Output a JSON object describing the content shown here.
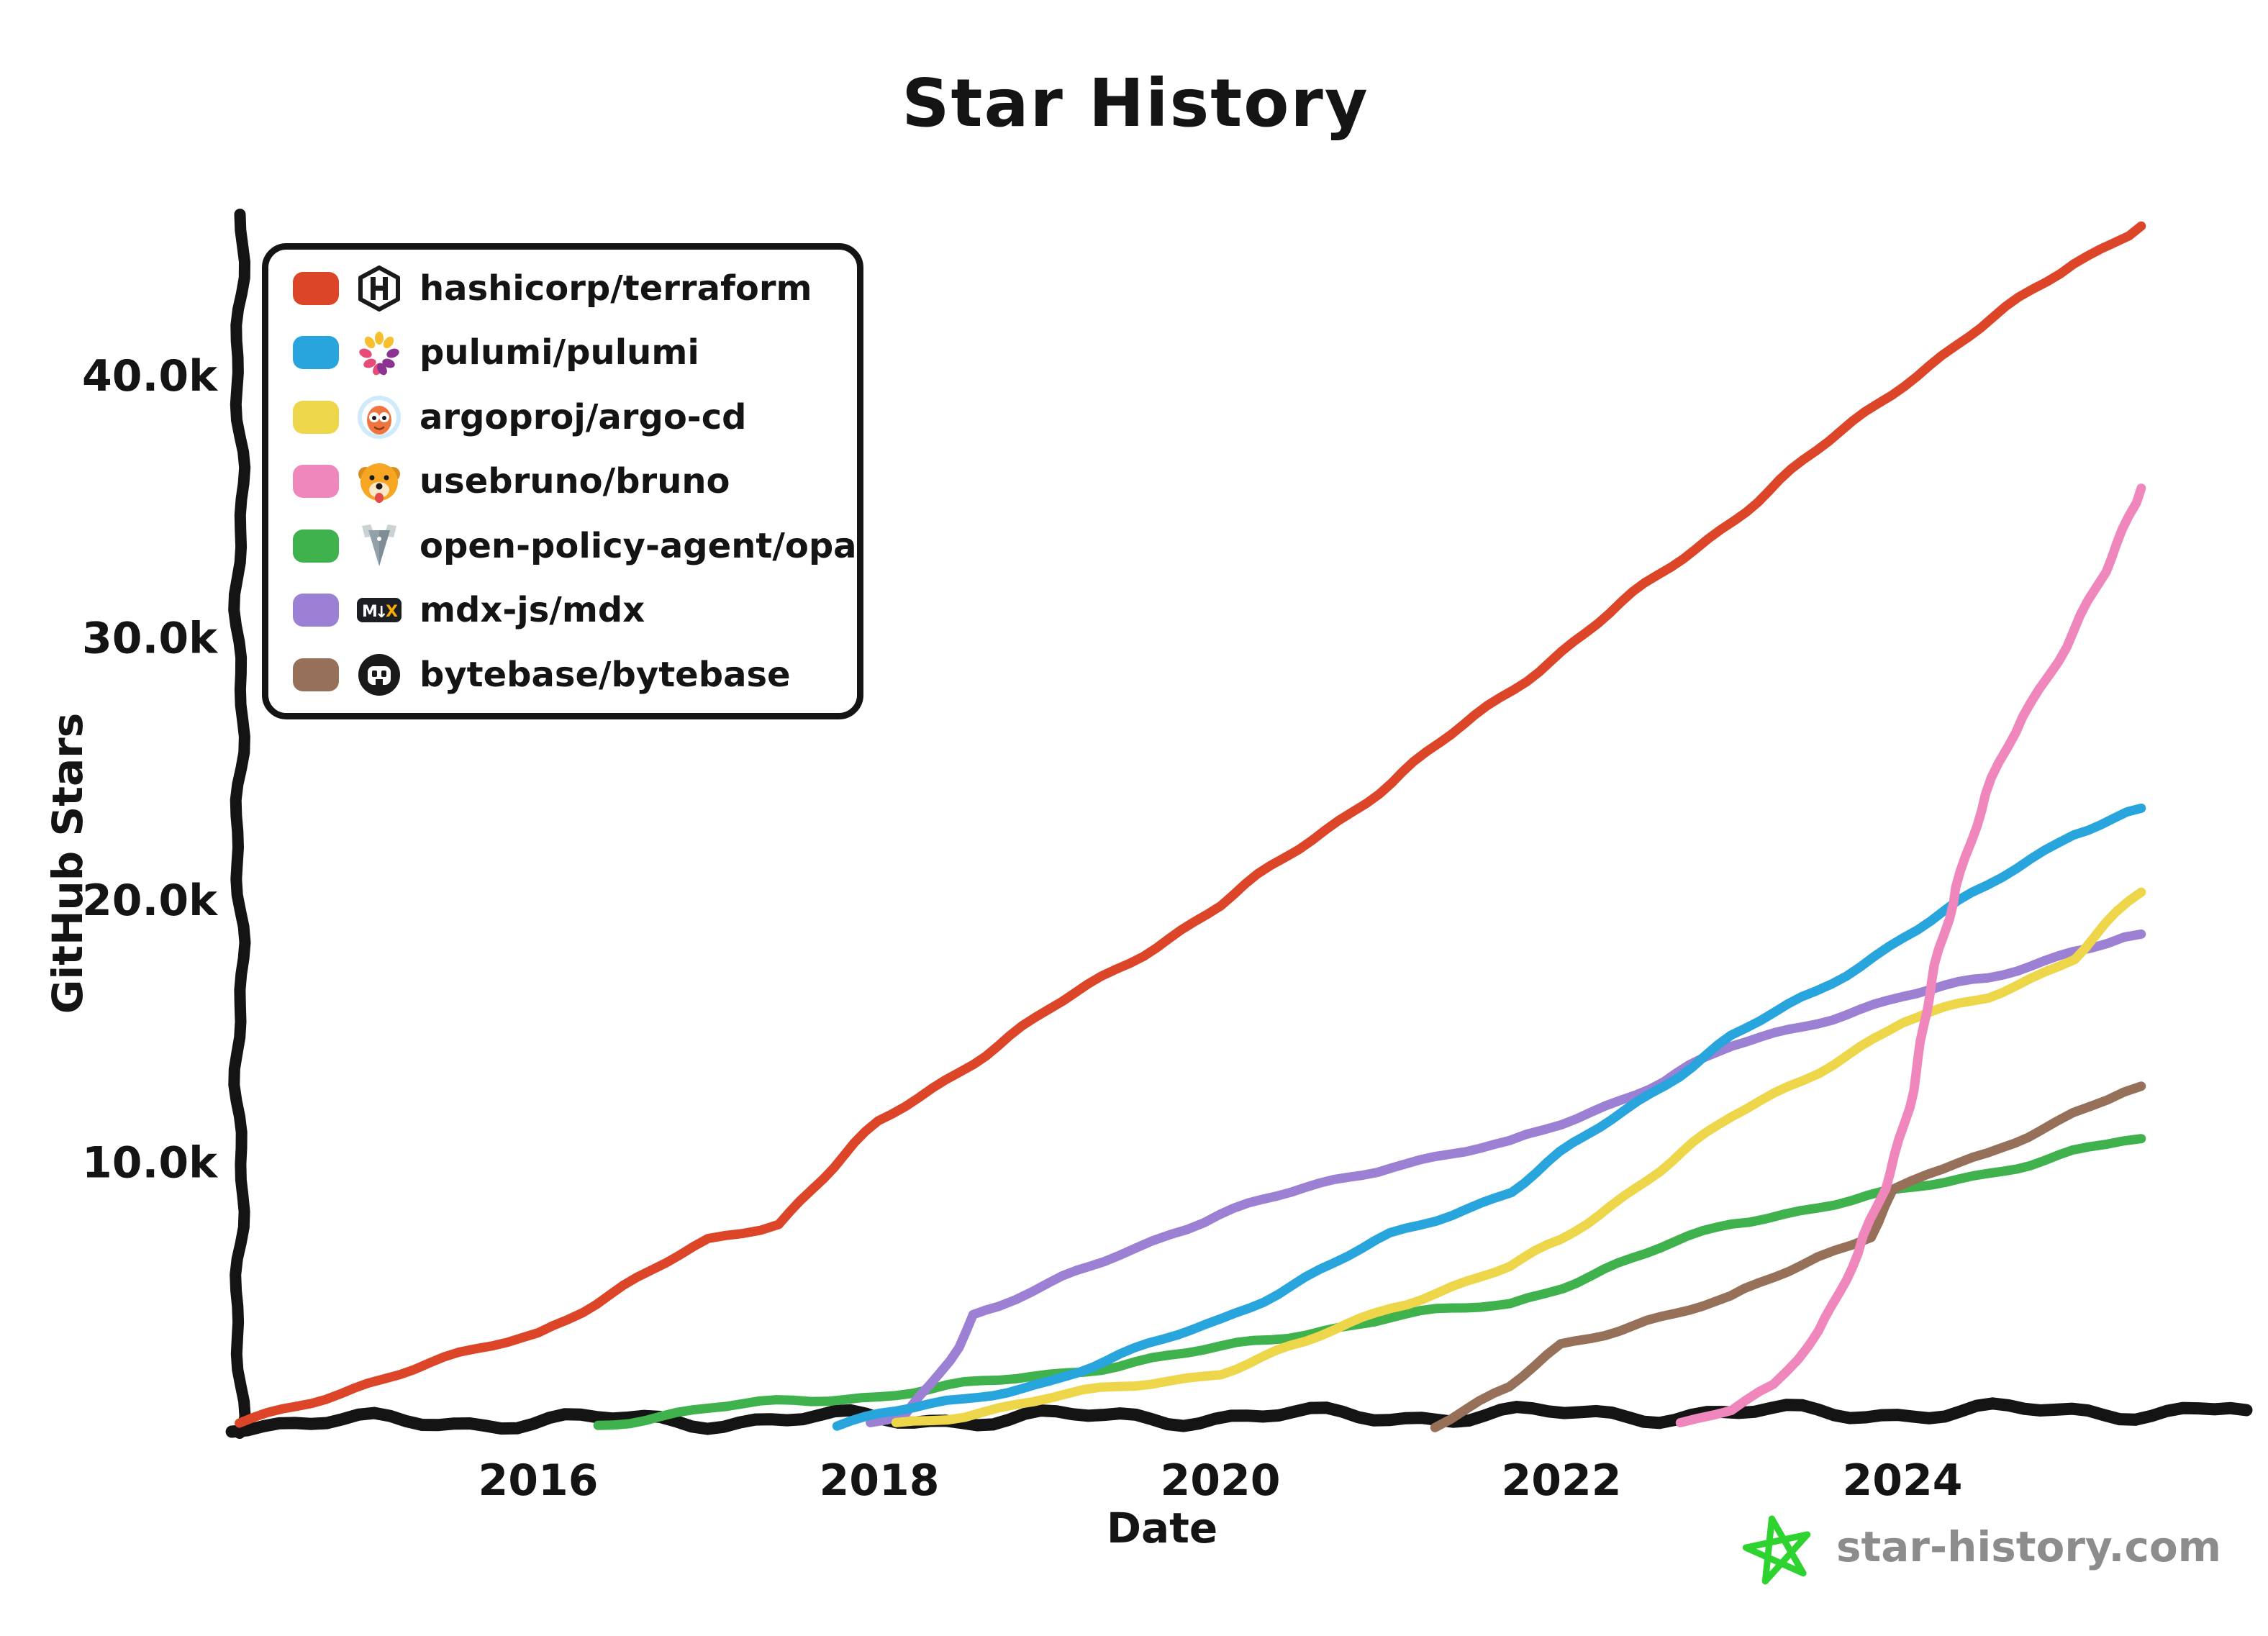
{
  "title": "Star History",
  "watermark": {
    "text": "star-history.com",
    "star_color": "#2fd32f",
    "text_color": "#8c8c8c"
  },
  "colors": {
    "axis": "#141414",
    "background": "#ffffff"
  },
  "chart_data": {
    "type": "line",
    "title": "Star History",
    "xlabel": "Date",
    "ylabel": "GitHub Stars",
    "x_range": [
      2014.25,
      2025.45
    ],
    "y_range": [
      0,
      46500
    ],
    "grid": false,
    "legend_position": "top-left",
    "x_ticks": [
      {
        "label": "2016",
        "value": 2016
      },
      {
        "label": "2018",
        "value": 2018
      },
      {
        "label": "2020",
        "value": 2020
      },
      {
        "label": "2022",
        "value": 2022
      },
      {
        "label": "2024",
        "value": 2024
      }
    ],
    "y_ticks": [
      {
        "label": "10.0k",
        "value": 10000
      },
      {
        "label": "20.0k",
        "value": 20000
      },
      {
        "label": "30.0k",
        "value": 30000
      },
      {
        "label": "40.0k",
        "value": 40000
      }
    ],
    "series": [
      {
        "name": "hashicorp/terraform",
        "color": "#dd4528",
        "icon": "hashicorp-icon",
        "points": [
          [
            2014.25,
            0
          ],
          [
            2015,
            1600
          ],
          [
            2016,
            3500
          ],
          [
            2017,
            7000
          ],
          [
            2017.4,
            7700
          ],
          [
            2018,
            11500
          ],
          [
            2019,
            15800
          ],
          [
            2020,
            19800
          ],
          [
            2021,
            24500
          ],
          [
            2022,
            29500
          ],
          [
            2023,
            34500
          ],
          [
            2024,
            39700
          ],
          [
            2025,
            44300
          ],
          [
            2025.4,
            45700
          ]
        ]
      },
      {
        "name": "pulumi/pulumi",
        "color": "#29a5dd",
        "icon": "pulumi-icon",
        "points": [
          [
            2017.75,
            0
          ],
          [
            2018,
            400
          ],
          [
            2018.5,
            900
          ],
          [
            2019,
            1700
          ],
          [
            2019.5,
            2800
          ],
          [
            2020,
            4000
          ],
          [
            2020.5,
            5600
          ],
          [
            2021,
            7200
          ],
          [
            2021.7,
            8900
          ],
          [
            2022,
            10300
          ],
          [
            2022.6,
            13000
          ],
          [
            2023,
            14800
          ],
          [
            2023.5,
            16500
          ],
          [
            2024,
            18600
          ],
          [
            2024.5,
            20500
          ],
          [
            2025,
            22600
          ],
          [
            2025.4,
            23500
          ]
        ]
      },
      {
        "name": "argoproj/argo-cd",
        "color": "#eed64a",
        "icon": "argo-icon",
        "points": [
          [
            2018.1,
            0
          ],
          [
            2018.5,
            400
          ],
          [
            2019,
            1000
          ],
          [
            2019.5,
            1500
          ],
          [
            2020,
            2000
          ],
          [
            2020.5,
            3100
          ],
          [
            2021,
            4500
          ],
          [
            2021.7,
            6000
          ],
          [
            2022,
            7000
          ],
          [
            2022.5,
            9400
          ],
          [
            2023,
            11700
          ],
          [
            2023.5,
            13500
          ],
          [
            2024,
            15300
          ],
          [
            2024.5,
            16300
          ],
          [
            2025,
            17800
          ],
          [
            2025.4,
            20300
          ]
        ]
      },
      {
        "name": "usebruno/bruno",
        "color": "#ef87bd",
        "icon": "bruno-icon",
        "points": [
          [
            2022.7,
            0
          ],
          [
            2023,
            500
          ],
          [
            2023.25,
            1500
          ],
          [
            2023.5,
            3600
          ],
          [
            2023.75,
            6500
          ],
          [
            2023.9,
            9000
          ],
          [
            2024,
            11500
          ],
          [
            2024.1,
            14000
          ],
          [
            2024.2,
            17500
          ],
          [
            2024.3,
            20500
          ],
          [
            2024.5,
            24000
          ],
          [
            2024.7,
            27000
          ],
          [
            2024.95,
            29700
          ],
          [
            2025.2,
            32500
          ],
          [
            2025.4,
            35700
          ]
        ]
      },
      {
        "name": "open-policy-agent/opa",
        "color": "#3fb14d",
        "icon": "opa-icon",
        "points": [
          [
            2016.35,
            0
          ],
          [
            2017,
            600
          ],
          [
            2017.5,
            900
          ],
          [
            2018,
            1100
          ],
          [
            2018.5,
            1500
          ],
          [
            2019,
            1900
          ],
          [
            2019.5,
            2400
          ],
          [
            2020,
            2900
          ],
          [
            2020.5,
            3500
          ],
          [
            2021,
            4100
          ],
          [
            2021.7,
            4600
          ],
          [
            2022,
            5300
          ],
          [
            2022.5,
            6500
          ],
          [
            2023,
            7700
          ],
          [
            2023.5,
            8300
          ],
          [
            2024,
            8900
          ],
          [
            2024.5,
            9600
          ],
          [
            2025,
            10400
          ],
          [
            2025.4,
            10900
          ]
        ]
      },
      {
        "name": "mdx-js/mdx",
        "color": "#9c80d3",
        "icon": "mdx-icon",
        "points": [
          [
            2017.95,
            0
          ],
          [
            2018.15,
            300
          ],
          [
            2018.3,
            1500
          ],
          [
            2018.45,
            3000
          ],
          [
            2018.55,
            4200
          ],
          [
            2018.7,
            4500
          ],
          [
            2019,
            5300
          ],
          [
            2019.4,
            6500
          ],
          [
            2019.7,
            7300
          ],
          [
            2020,
            8000
          ],
          [
            2020.5,
            9000
          ],
          [
            2021,
            9900
          ],
          [
            2021.7,
            10700
          ],
          [
            2022,
            11500
          ],
          [
            2022.6,
            13100
          ],
          [
            2023,
            14400
          ],
          [
            2023.5,
            15400
          ],
          [
            2024,
            16300
          ],
          [
            2024.5,
            17000
          ],
          [
            2025,
            18100
          ],
          [
            2025.4,
            18700
          ]
        ]
      },
      {
        "name": "bytebase/bytebase",
        "color": "#97705a",
        "icon": "bytebase-icon",
        "points": [
          [
            2021.25,
            0
          ],
          [
            2021.7,
            1400
          ],
          [
            2022,
            3000
          ],
          [
            2022.5,
            4000
          ],
          [
            2023,
            4800
          ],
          [
            2023.5,
            6400
          ],
          [
            2023.8,
            7200
          ],
          [
            2023.95,
            8900
          ],
          [
            2024.15,
            9500
          ],
          [
            2024.5,
            10300
          ],
          [
            2024.8,
            11300
          ],
          [
            2025,
            11900
          ],
          [
            2025.2,
            12400
          ],
          [
            2025.4,
            12900
          ]
        ]
      }
    ]
  }
}
